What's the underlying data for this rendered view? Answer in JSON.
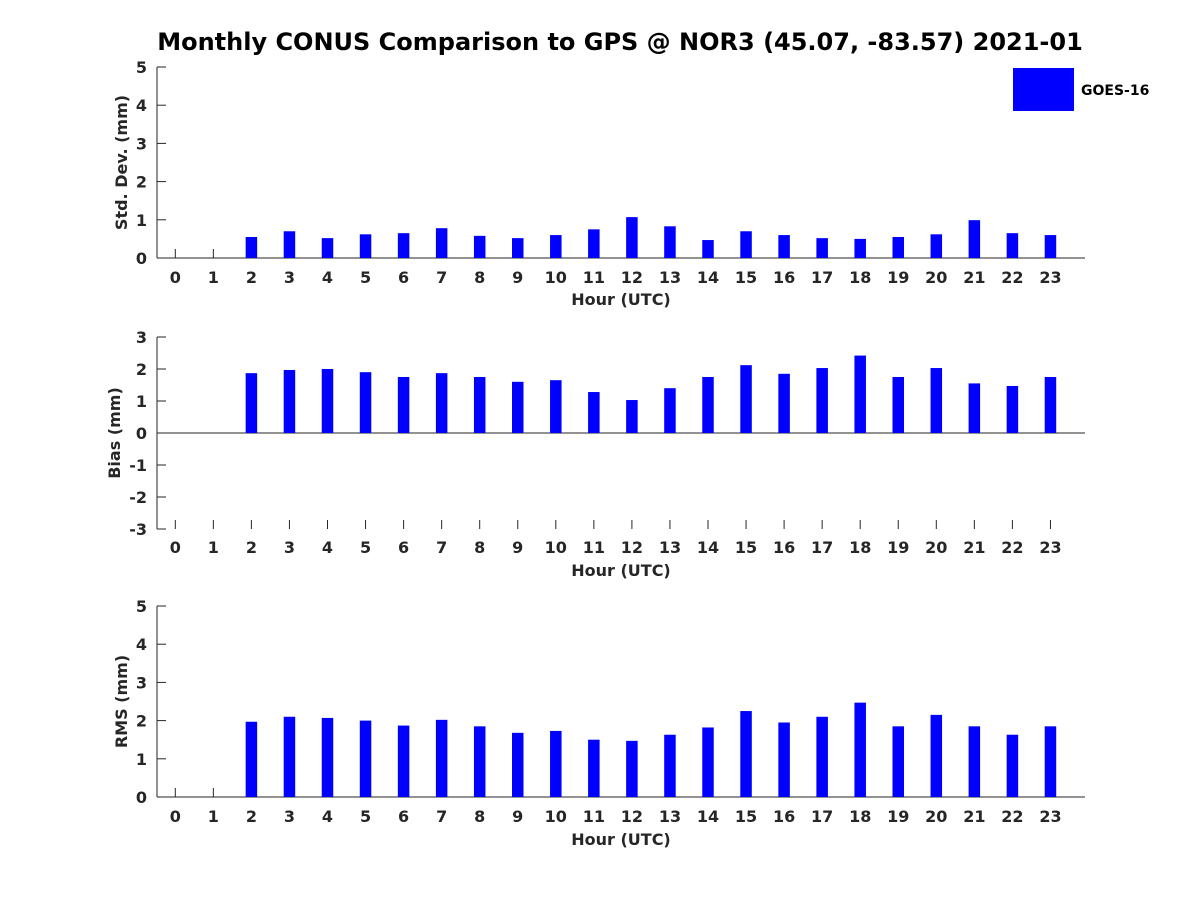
{
  "chart_data": {
    "title": "Monthly CONUS Comparison to GPS @ NOR3 (45.07, -83.57) 2021-01",
    "type": "bar",
    "legend": {
      "placement": "top-right",
      "entries": [
        "GOES-16"
      ]
    },
    "colors": {
      "series": "#0000ff"
    },
    "panels": [
      {
        "type": "bar",
        "xlabel": "Hour (UTC)",
        "ylabel": "Std. Dev. (mm)",
        "ylim": [
          0,
          5
        ],
        "yticks": [
          "0",
          "1",
          "2",
          "3",
          "4",
          "5"
        ],
        "categories": [
          "0",
          "1",
          "2",
          "3",
          "4",
          "5",
          "6",
          "7",
          "8",
          "9",
          "10",
          "11",
          "12",
          "13",
          "14",
          "15",
          "16",
          "17",
          "18",
          "19",
          "20",
          "21",
          "22",
          "23"
        ],
        "series": [
          {
            "name": "GOES-16",
            "values": [
              null,
              null,
              0.55,
              0.7,
              0.52,
              0.62,
              0.65,
              0.78,
              0.58,
              0.52,
              0.6,
              0.75,
              1.07,
              0.83,
              0.47,
              0.7,
              0.6,
              0.52,
              0.5,
              0.55,
              0.62,
              0.99,
              0.65,
              0.6
            ]
          }
        ]
      },
      {
        "type": "bar",
        "xlabel": "Hour (UTC)",
        "ylabel": "Bias (mm)",
        "ylim": [
          -3,
          3
        ],
        "yticks": [
          "-3",
          "-2",
          "-1",
          "0",
          "1",
          "2",
          "3"
        ],
        "categories": [
          "0",
          "1",
          "2",
          "3",
          "4",
          "5",
          "6",
          "7",
          "8",
          "9",
          "10",
          "11",
          "12",
          "13",
          "14",
          "15",
          "16",
          "17",
          "18",
          "19",
          "20",
          "21",
          "22",
          "23"
        ],
        "series": [
          {
            "name": "GOES-16",
            "values": [
              null,
              null,
              1.87,
              1.97,
              2.0,
              1.9,
              1.75,
              1.87,
              1.75,
              1.6,
              1.65,
              1.28,
              1.03,
              1.4,
              1.75,
              2.12,
              1.85,
              2.03,
              2.42,
              1.75,
              2.03,
              1.55,
              1.47,
              1.75
            ]
          }
        ]
      },
      {
        "type": "bar",
        "xlabel": "Hour (UTC)",
        "ylabel": "RMS (mm)",
        "ylim": [
          0,
          5
        ],
        "yticks": [
          "0",
          "1",
          "2",
          "3",
          "4",
          "5"
        ],
        "categories": [
          "0",
          "1",
          "2",
          "3",
          "4",
          "5",
          "6",
          "7",
          "8",
          "9",
          "10",
          "11",
          "12",
          "13",
          "14",
          "15",
          "16",
          "17",
          "18",
          "19",
          "20",
          "21",
          "22",
          "23"
        ],
        "series": [
          {
            "name": "GOES-16",
            "values": [
              null,
              null,
              1.97,
              2.1,
              2.07,
              2.0,
              1.87,
              2.02,
              1.85,
              1.68,
              1.73,
              1.5,
              1.47,
              1.63,
              1.82,
              2.25,
              1.95,
              2.1,
              2.47,
              1.85,
              2.15,
              1.85,
              1.63,
              1.85
            ]
          }
        ]
      }
    ]
  }
}
